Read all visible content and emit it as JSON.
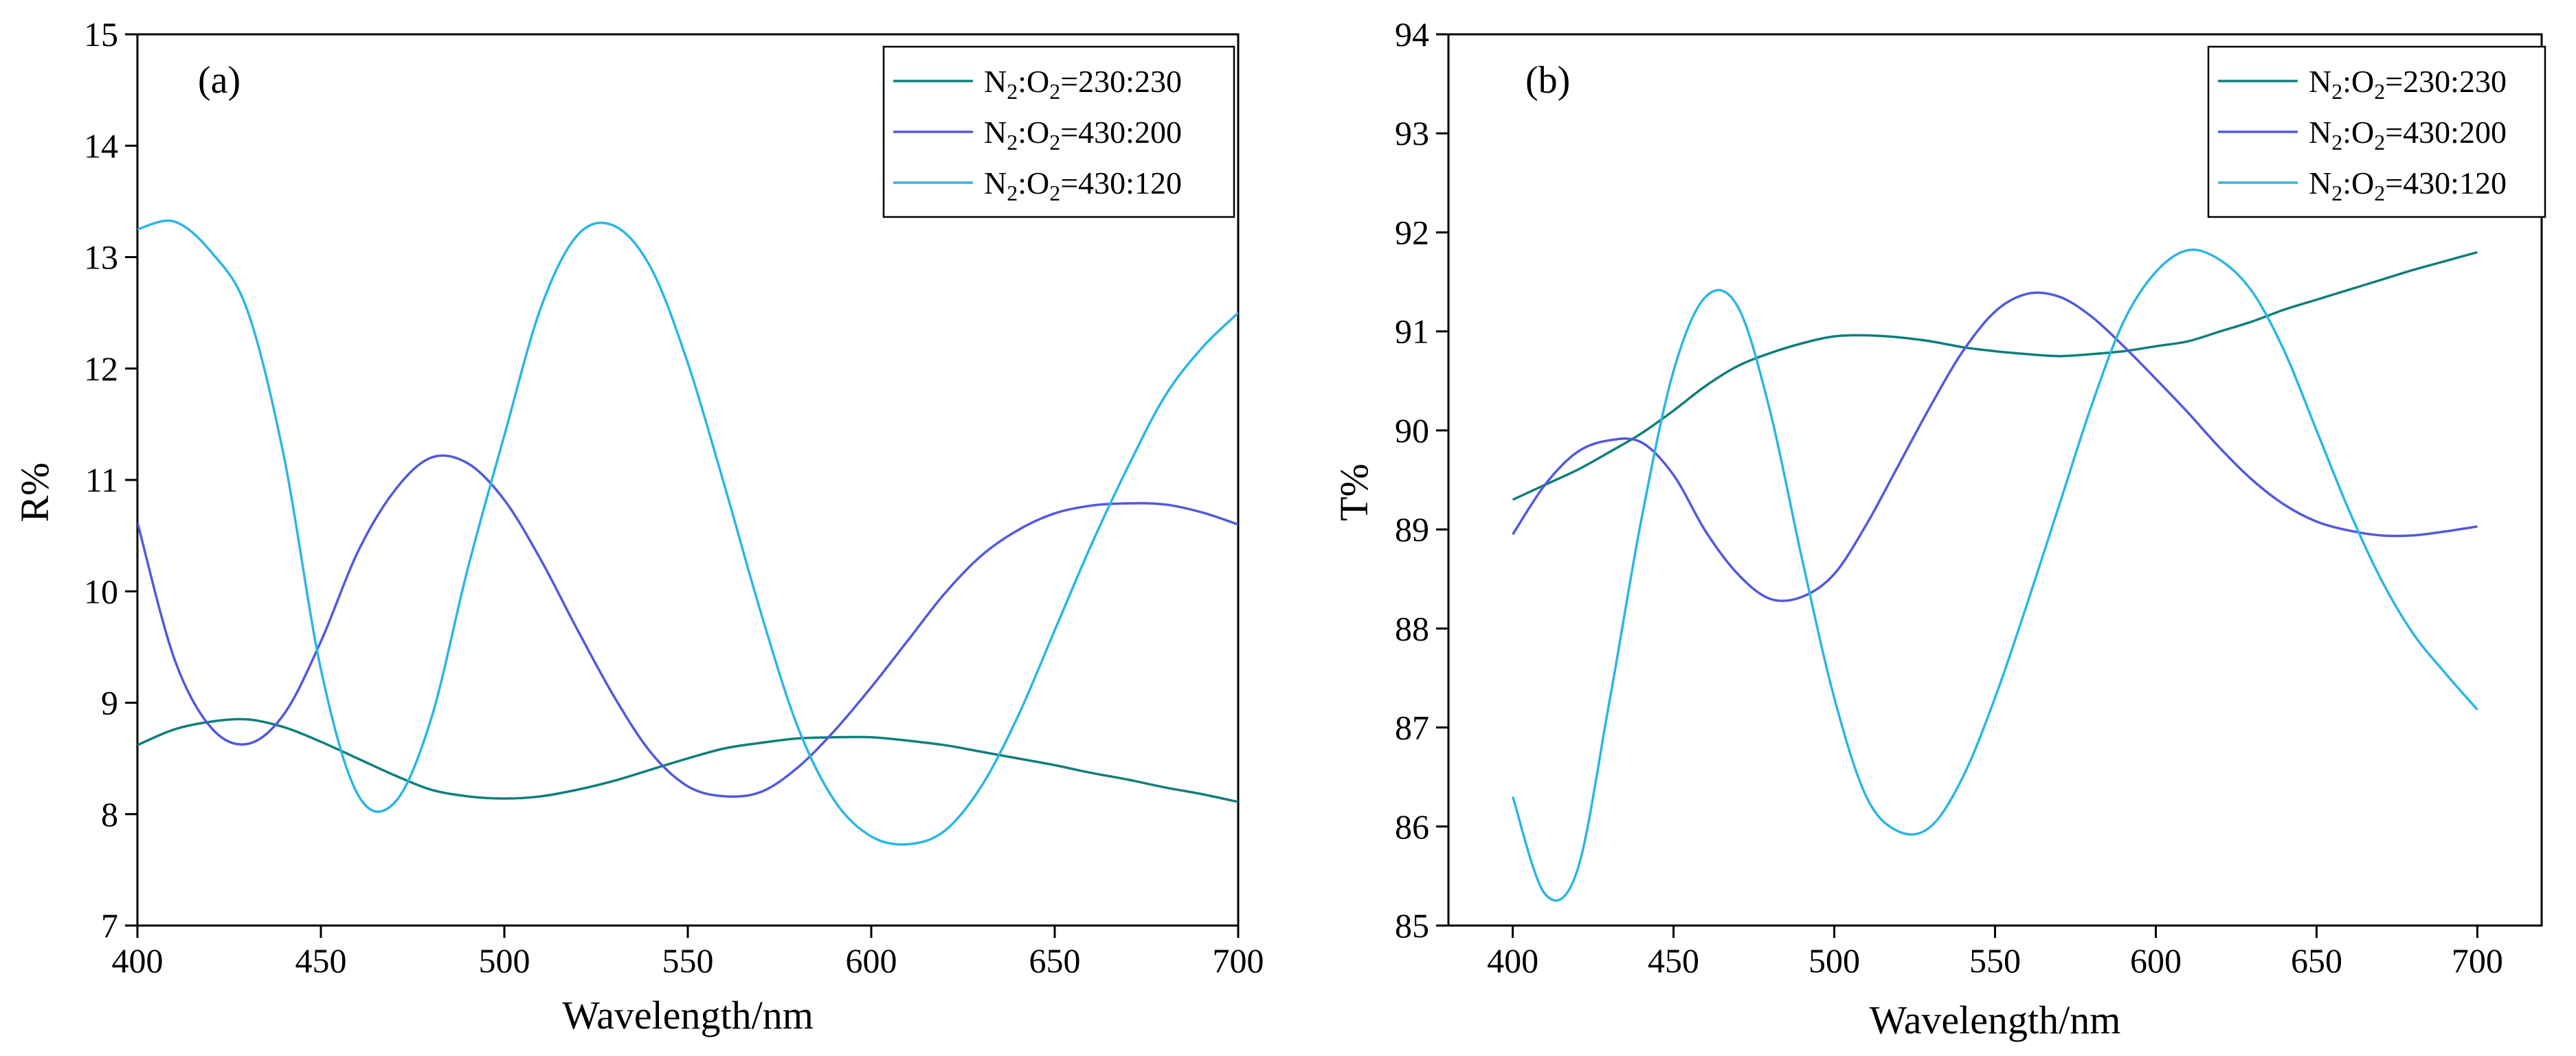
{
  "chart_data": [
    {
      "type": "line",
      "panel_label": "(a)",
      "xlabel": "Wavelength/nm",
      "ylabel": "R%",
      "xlim": [
        400,
        700
      ],
      "ylim": [
        7,
        15
      ],
      "x_ticks": [
        400,
        450,
        500,
        550,
        600,
        650,
        700
      ],
      "y_ticks": [
        7,
        8,
        9,
        10,
        11,
        12,
        13,
        14,
        15
      ],
      "grid": false,
      "legend_position": "top-right",
      "x": [
        400,
        410,
        420,
        430,
        440,
        450,
        460,
        470,
        480,
        490,
        500,
        510,
        520,
        530,
        540,
        550,
        560,
        570,
        580,
        590,
        600,
        610,
        620,
        630,
        640,
        650,
        660,
        670,
        680,
        690,
        700
      ],
      "series": [
        {
          "name": "N2:O2=230:230",
          "legend": {
            "pre": "N",
            "s1": "2",
            "mid": ":O",
            "s2": "2",
            "post": "=230:230"
          },
          "color": "#0f7f7a",
          "values": [
            8.62,
            8.76,
            8.83,
            8.85,
            8.78,
            8.65,
            8.5,
            8.35,
            8.22,
            8.16,
            8.14,
            8.16,
            8.22,
            8.3,
            8.4,
            8.5,
            8.59,
            8.64,
            8.68,
            8.69,
            8.69,
            8.66,
            8.62,
            8.56,
            8.5,
            8.44,
            8.37,
            8.31,
            8.24,
            8.18,
            8.11
          ]
        },
        {
          "name": "N2:O2=430:200",
          "legend": {
            "pre": "N",
            "s1": "2",
            "mid": ":O",
            "s2": "2",
            "post": "=430:200"
          },
          "color": "#5158e0",
          "values": [
            10.62,
            9.4,
            8.78,
            8.63,
            8.9,
            9.55,
            10.35,
            10.9,
            11.2,
            11.15,
            10.82,
            10.28,
            9.65,
            9.05,
            8.55,
            8.25,
            8.16,
            8.2,
            8.42,
            8.75,
            9.14,
            9.56,
            9.98,
            10.32,
            10.55,
            10.7,
            10.77,
            10.79,
            10.78,
            10.71,
            10.6
          ]
        },
        {
          "name": "N2:O2=430:120",
          "legend": {
            "pre": "N",
            "s1": "2",
            "mid": ":O",
            "s2": "2",
            "post": "=430:120"
          },
          "color": "#2ab6e6",
          "values": [
            13.25,
            13.32,
            13.05,
            12.52,
            11.2,
            9.3,
            8.18,
            8.1,
            8.85,
            10.2,
            11.4,
            12.55,
            13.2,
            13.28,
            12.9,
            12.05,
            10.95,
            9.8,
            8.78,
            8.12,
            7.8,
            7.73,
            7.85,
            8.25,
            8.88,
            9.65,
            10.42,
            11.12,
            11.75,
            12.18,
            12.5
          ]
        }
      ]
    },
    {
      "type": "line",
      "panel_label": "(b)",
      "xlabel": "Wavelength/nm",
      "ylabel": "T%",
      "xlim": [
        380,
        720
      ],
      "ylim": [
        85,
        94
      ],
      "x_ticks": [
        400,
        450,
        500,
        550,
        600,
        650,
        700
      ],
      "y_ticks": [
        85,
        86,
        87,
        88,
        89,
        90,
        91,
        92,
        93,
        94
      ],
      "grid": false,
      "legend_position": "top-right",
      "x": [
        400,
        410,
        420,
        430,
        440,
        450,
        460,
        470,
        480,
        490,
        500,
        510,
        520,
        530,
        540,
        550,
        560,
        570,
        580,
        590,
        600,
        610,
        620,
        630,
        640,
        650,
        660,
        670,
        680,
        690,
        700
      ],
      "series": [
        {
          "name": "N2:O2=230:230",
          "legend": {
            "pre": "N",
            "s1": "2",
            "mid": ":O",
            "s2": "2",
            "post": "=230:230"
          },
          "color": "#0f7f7a",
          "values": [
            89.3,
            89.45,
            89.6,
            89.78,
            89.97,
            90.2,
            90.45,
            90.65,
            90.78,
            90.88,
            90.95,
            90.96,
            90.94,
            90.9,
            90.84,
            90.8,
            90.77,
            90.75,
            90.77,
            90.8,
            90.85,
            90.9,
            91.0,
            91.1,
            91.22,
            91.32,
            91.42,
            91.52,
            91.62,
            91.71,
            91.8
          ]
        },
        {
          "name": "N2:O2=430:200",
          "legend": {
            "pre": "N",
            "s1": "2",
            "mid": ":O",
            "s2": "2",
            "post": "=430:200"
          },
          "color": "#5158e0",
          "values": [
            88.95,
            89.45,
            89.78,
            89.9,
            89.88,
            89.55,
            88.98,
            88.55,
            88.3,
            88.32,
            88.55,
            89.05,
            89.65,
            90.25,
            90.8,
            91.2,
            91.38,
            91.35,
            91.15,
            90.85,
            90.52,
            90.18,
            89.82,
            89.5,
            89.25,
            89.08,
            88.99,
            88.94,
            88.94,
            88.98,
            89.03
          ]
        },
        {
          "name": "N2:O2=430:120",
          "legend": {
            "pre": "N",
            "s1": "2",
            "mid": ":O",
            "s2": "2",
            "post": "=430:120"
          },
          "color": "#2ab6e6",
          "values": [
            86.3,
            85.32,
            85.55,
            87.25,
            89.1,
            90.6,
            91.35,
            91.25,
            90.2,
            88.7,
            87.3,
            86.3,
            85.95,
            86.0,
            86.5,
            87.3,
            88.25,
            89.25,
            90.25,
            91.1,
            91.6,
            91.82,
            91.72,
            91.4,
            90.8,
            90.0,
            89.2,
            88.5,
            87.95,
            87.55,
            87.18
          ]
        }
      ]
    }
  ]
}
